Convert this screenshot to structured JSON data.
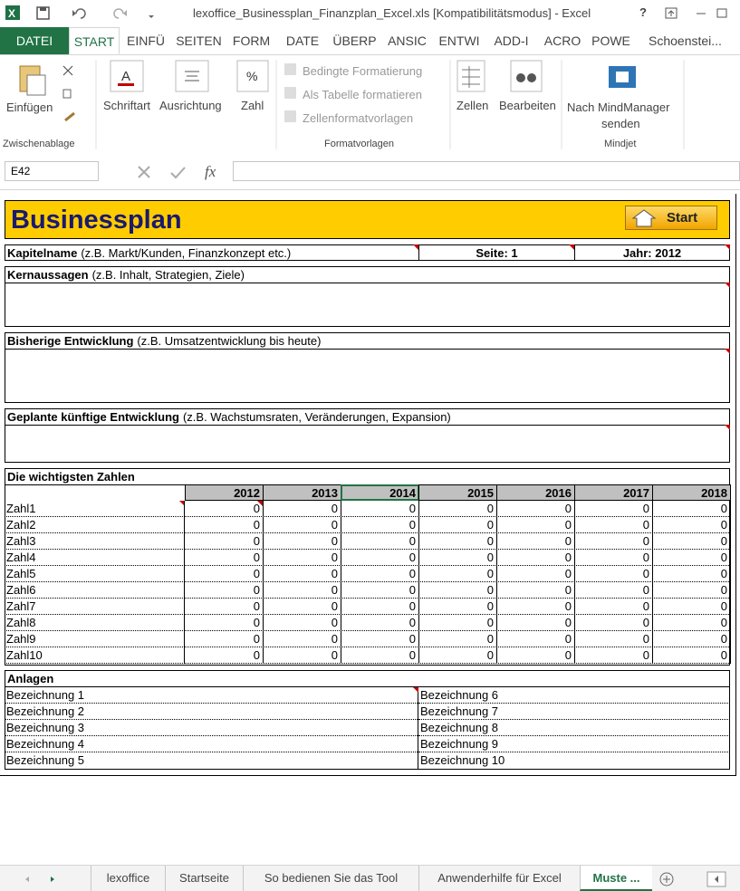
{
  "title_bar": {
    "title": "lexoffice_Businessplan_Finanzplan_Excel.xls  [Kompatibilitätsmodus] - Excel",
    "help": "?"
  },
  "ribbon_tabs": [
    "DATEI",
    "START",
    "EINFÜ",
    "SEITEN",
    "FORM",
    "DATE",
    "ÜBERP",
    "ANSIC",
    "ENTWI",
    "ADD-I",
    "ACRO",
    "POWE"
  ],
  "account": "Schoenstei...",
  "ribbon": {
    "clipboard": {
      "paste": "Einfügen",
      "label": "Zwischenablage"
    },
    "font": "Schriftart",
    "alignment": "Ausrichtung",
    "number": "Zahl",
    "styles": {
      "conditional": "Bedingte Formatierung",
      "table": "Als Tabelle formatieren",
      "cell_styles": "Zellenformatvorlagen",
      "label": "Formatvorlagen"
    },
    "cells": "Zellen",
    "editing": "Bearbeiten",
    "mindjet": {
      "button": [
        "Nach MindManager",
        "senden"
      ],
      "label": "Mindjet"
    }
  },
  "formula_bar": {
    "name_box": "E42",
    "function": "fx"
  },
  "sheet": {
    "title": "Businessplan",
    "start_button": "Start",
    "chapter": {
      "name": "Kapitelname",
      "name_hint": "(z.B. Markt/Kunden, Finanzkonzept etc.)",
      "page": "Seite: 1",
      "year": "Jahr: 2012"
    },
    "sections": [
      {
        "title": "Kernaussagen",
        "hint": "(z.B. Inhalt, Strategien, Ziele)"
      },
      {
        "title": "Bisherige Entwicklung",
        "hint": "(z.B. Umsatzentwicklung bis heute)"
      },
      {
        "title": "Geplante künftige Entwicklung",
        "hint": "(z.B. Wachstumsraten, Veränderungen, Expansion)"
      }
    ],
    "figures": {
      "title": "Die wichtigsten Zahlen",
      "years": [
        2012,
        2013,
        2014,
        2015,
        2016,
        2017,
        2018
      ],
      "rows": [
        {
          "label": "Zahl1",
          "values": [
            0,
            0,
            0,
            0,
            0,
            0,
            0
          ]
        },
        {
          "label": "Zahl2",
          "values": [
            0,
            0,
            0,
            0,
            0,
            0,
            0
          ]
        },
        {
          "label": "Zahl3",
          "values": [
            0,
            0,
            0,
            0,
            0,
            0,
            0
          ]
        },
        {
          "label": "Zahl4",
          "values": [
            0,
            0,
            0,
            0,
            0,
            0,
            0
          ]
        },
        {
          "label": "Zahl5",
          "values": [
            0,
            0,
            0,
            0,
            0,
            0,
            0
          ]
        },
        {
          "label": "Zahl6",
          "values": [
            0,
            0,
            0,
            0,
            0,
            0,
            0
          ]
        },
        {
          "label": "Zahl7",
          "values": [
            0,
            0,
            0,
            0,
            0,
            0,
            0
          ]
        },
        {
          "label": "Zahl8",
          "values": [
            0,
            0,
            0,
            0,
            0,
            0,
            0
          ]
        },
        {
          "label": "Zahl9",
          "values": [
            0,
            0,
            0,
            0,
            0,
            0,
            0
          ]
        },
        {
          "label": "Zahl10",
          "values": [
            0,
            0,
            0,
            0,
            0,
            0,
            0
          ]
        }
      ]
    },
    "attachments": {
      "title": "Anlagen",
      "left": [
        "Bezeichnung 1",
        "Bezeichnung 2",
        "Bezeichnung 3",
        "Bezeichnung 4",
        "Bezeichnung 5"
      ],
      "right": [
        "Bezeichnung 6",
        "Bezeichnung 7",
        "Bezeichnung 8",
        "Bezeichnung 9",
        "Bezeichnung 10"
      ]
    }
  },
  "sheet_tabs": [
    "lexoffice",
    "Startseite",
    "So bedienen Sie das Tool",
    "Anwenderhilfe für Excel",
    "Muste ..."
  ]
}
